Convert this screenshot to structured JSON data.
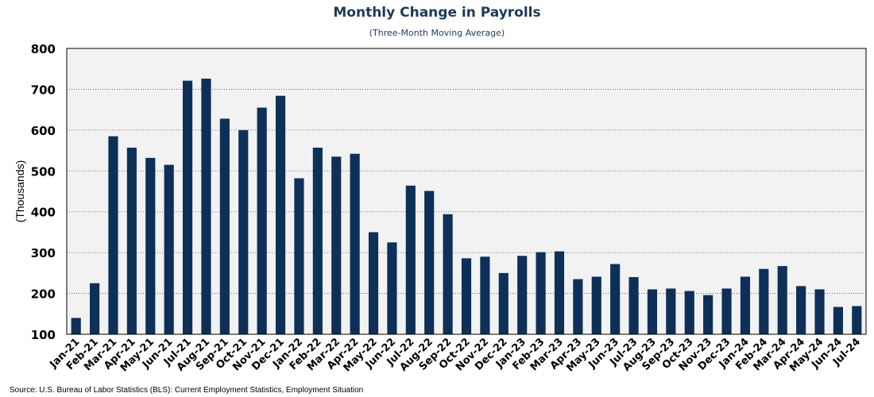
{
  "chart_data": {
    "type": "bar",
    "title": "Monthly Change in Payrolls",
    "subtitle": "(Three-Month Moving Average)",
    "ylabel": "(Thousands)",
    "xlabel": "",
    "ylim": [
      100,
      800
    ],
    "yticks": [
      100,
      200,
      300,
      400,
      500,
      600,
      700,
      800
    ],
    "grid": true,
    "bar_color": "#0d3059",
    "plot_background": "#f2f2f2",
    "categories": [
      "Jan-21",
      "Feb-21",
      "Mar-21",
      "Apr-21",
      "May-21",
      "Jun-21",
      "Jul-21",
      "Aug-21",
      "Sep-21",
      "Oct-21",
      "Nov-21",
      "Dec-21",
      "Jan-22",
      "Feb-22",
      "Mar-22",
      "Apr-22",
      "May-22",
      "Jun-22",
      "Jul-22",
      "Aug-22",
      "Sep-22",
      "Oct-22",
      "Nov-22",
      "Dec-22",
      "Jan-23",
      "Feb-23",
      "Mar-23",
      "Apr-23",
      "May-23",
      "Jun-23",
      "Jul-23",
      "Aug-23",
      "Sep-23",
      "Oct-23",
      "Nov-23",
      "Dec-23",
      "Jan-24",
      "Feb-24",
      "Mar-24",
      "Apr-24",
      "May-24",
      "Jun-24",
      "Jul-24"
    ],
    "values": [
      140,
      225,
      585,
      557,
      532,
      515,
      721,
      726,
      628,
      600,
      655,
      684,
      482,
      557,
      535,
      542,
      350,
      325,
      464,
      451,
      394,
      286,
      290,
      250,
      292,
      301,
      303,
      235,
      241,
      272,
      240,
      210,
      212,
      206,
      196,
      212,
      241,
      260,
      267,
      218,
      210,
      167,
      169
    ],
    "source": "Source: U.S. Bureau of Labor Statistics (BLS): Current Employment Statistics, Employment Situation"
  }
}
